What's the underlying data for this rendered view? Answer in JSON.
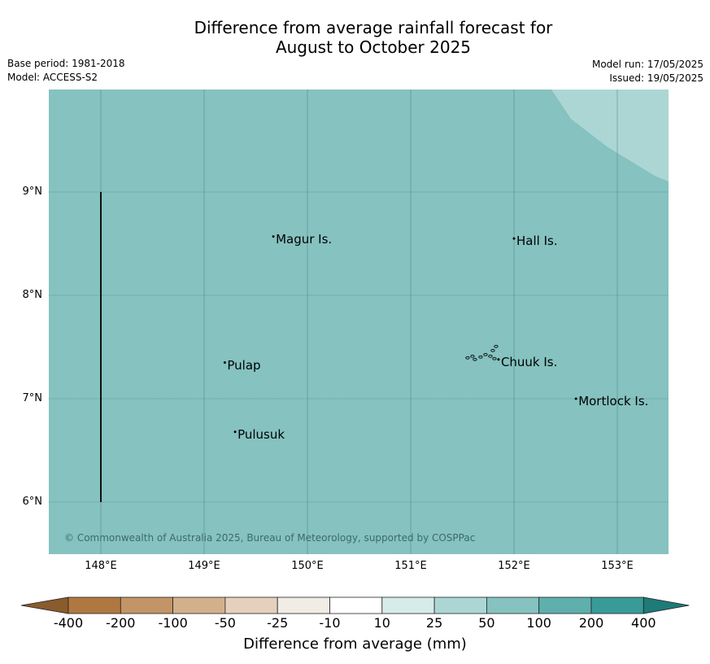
{
  "title": {
    "line1": "Difference from average rainfall forecast for",
    "line2": "August to October 2025"
  },
  "meta_left": {
    "base_period": "Base period: 1981-2018",
    "model": "Model: ACCESS-S2"
  },
  "meta_right": {
    "model_run": "Model run: 17/05/2025",
    "issued": "Issued: 19/05/2025"
  },
  "map": {
    "colors": {
      "main_fill": "#85c2c0",
      "upper_right_fill": "#acd6d4"
    },
    "lat_ticks": [
      {
        "lat": 9,
        "label": "9°N"
      },
      {
        "lat": 8,
        "label": "8°N"
      },
      {
        "lat": 7,
        "label": "7°N"
      },
      {
        "lat": 6,
        "label": "6°N"
      }
    ],
    "lon_ticks": [
      {
        "lon": 148,
        "label": "148°E"
      },
      {
        "lon": 149,
        "label": "149°E"
      },
      {
        "lon": 150,
        "label": "150°E"
      },
      {
        "lon": 151,
        "label": "151°E"
      },
      {
        "lon": 152,
        "label": "152°E"
      },
      {
        "lon": 153,
        "label": "153°E"
      }
    ],
    "places": [
      {
        "name": "Magur Is.",
        "lon": 149.67,
        "lat": 8.57
      },
      {
        "name": "Hall Is.",
        "lon": 152.0,
        "lat": 8.55
      },
      {
        "name": "Pulap",
        "lon": 149.2,
        "lat": 7.35
      },
      {
        "name": "Chuuk Is.",
        "lon": 151.85,
        "lat": 7.38
      },
      {
        "name": "Mortlock Is.",
        "lon": 152.6,
        "lat": 7.0
      },
      {
        "name": "Pulusuk",
        "lon": 149.3,
        "lat": 6.68
      }
    ],
    "copyright": "© Commonwealth of Australia 2025, Bureau of Meteorology, supported by COSPPac"
  },
  "colorbar": {
    "labels": [
      "-400",
      "-200",
      "-100",
      "-50",
      "-25",
      "-10",
      "10",
      "25",
      "50",
      "100",
      "200",
      "400"
    ],
    "colors": [
      "#b07840",
      "#c39466",
      "#d3b08c",
      "#e4d0bd",
      "#f1ece5",
      "#ffffff",
      "#d6ebea",
      "#acd6d4",
      "#85c2c0",
      "#5fafad",
      "#389b98"
    ],
    "under_color": "#8a5b2c",
    "over_color": "#1e7b77",
    "title": "Difference from average (mm)"
  }
}
